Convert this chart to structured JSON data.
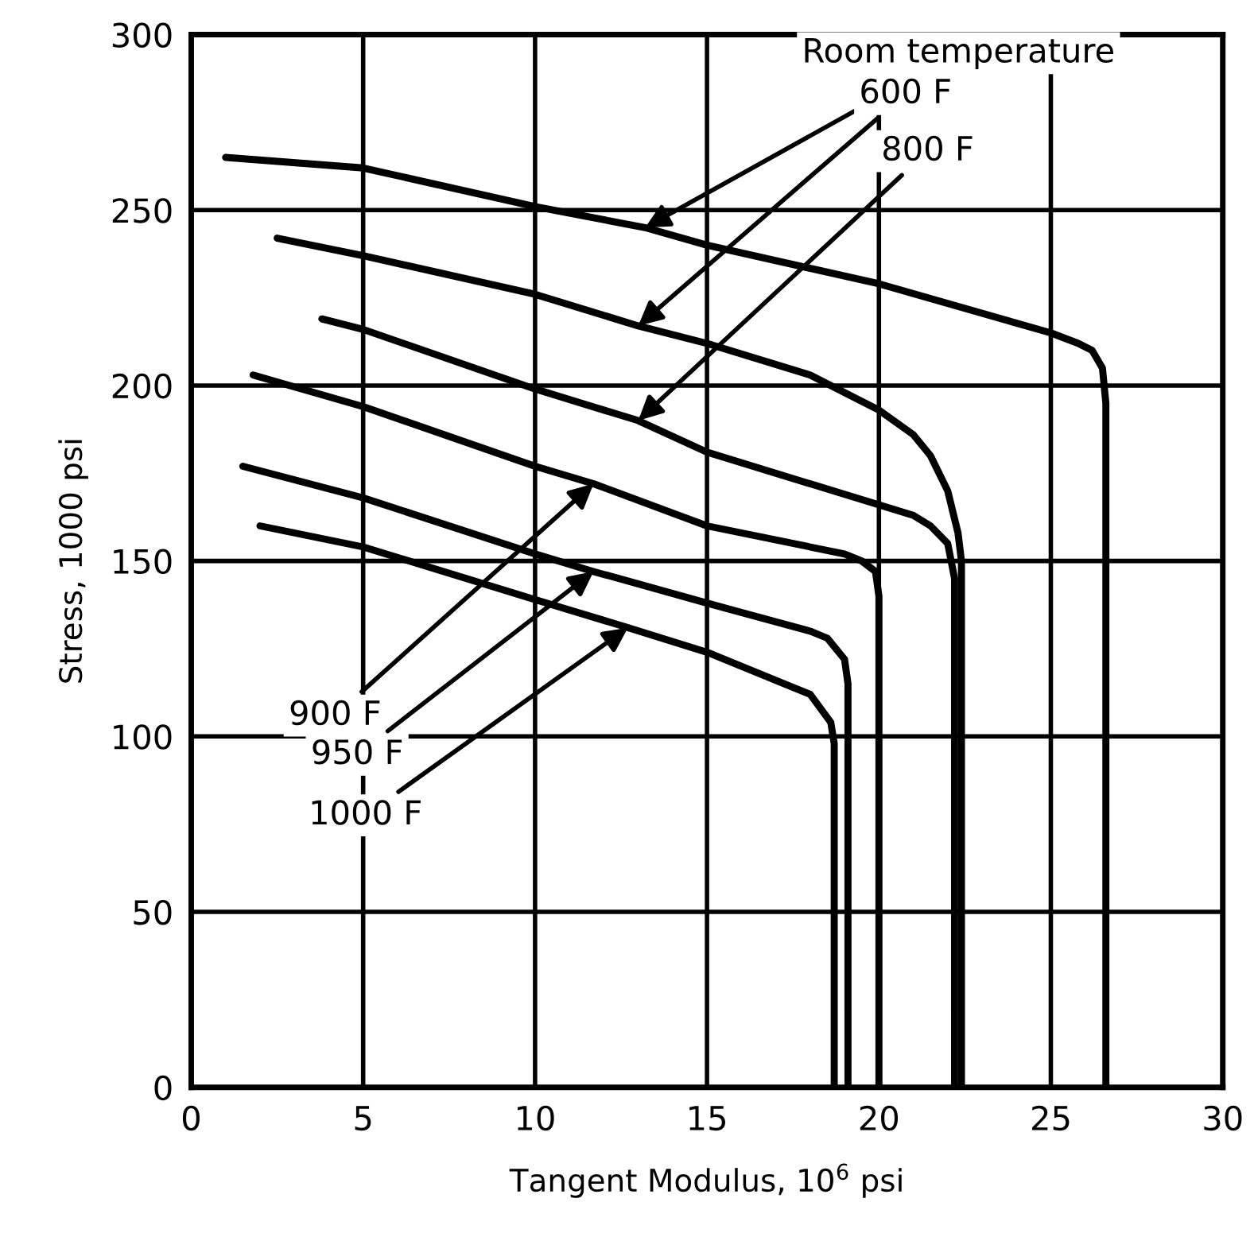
{
  "chart_data": {
    "type": "line",
    "xlabel": "Tangent Modulus, 10$^{6}$ psi",
    "ylabel": "Stress, 1000 psi",
    "xlim": [
      0,
      30
    ],
    "ylim": [
      0,
      300
    ],
    "xticks": [
      0,
      5,
      10,
      15,
      20,
      25,
      30
    ],
    "yticks": [
      0,
      50,
      100,
      150,
      200,
      250,
      300
    ],
    "grid": true,
    "marker": "none",
    "line_style": "solid",
    "series": [
      {
        "color": "#000000",
        "x": [
          1,
          5,
          10,
          13.2,
          15,
          20,
          25,
          25.8,
          26.2,
          26.5,
          26.6,
          26.6
        ],
        "values": [
          265,
          262,
          251,
          245,
          240,
          229,
          215,
          212,
          210,
          205,
          195,
          0
        ]
      },
      {
        "color": "#000000",
        "x": [
          2.5,
          5,
          10,
          13,
          15,
          18,
          20,
          21,
          21.5,
          22,
          22.3,
          22.4,
          22.4
        ],
        "values": [
          242,
          237,
          226,
          217,
          212,
          203,
          193,
          186,
          180,
          170,
          158,
          150,
          0
        ]
      },
      {
        "color": "#000000",
        "x": [
          3.8,
          5,
          10,
          13,
          15,
          20,
          21,
          21.5,
          22,
          22.2,
          22.2
        ],
        "values": [
          219,
          216,
          199,
          190,
          181,
          166,
          163,
          160,
          155,
          145,
          0
        ]
      },
      {
        "color": "#000000",
        "x": [
          1.8,
          5,
          10,
          11.7,
          15,
          19,
          19.5,
          19.9,
          20,
          20
        ],
        "values": [
          203,
          194,
          177,
          172,
          160,
          152,
          150,
          147,
          140,
          0
        ]
      },
      {
        "color": "#000000",
        "x": [
          1.5,
          5,
          10,
          11.7,
          15,
          18,
          18.5,
          19,
          19.1,
          19.1
        ],
        "values": [
          177,
          168,
          152,
          147,
          138,
          130,
          128,
          122,
          115,
          0
        ]
      },
      {
        "color": "#000000",
        "x": [
          2,
          5,
          10,
          12.7,
          15,
          17.5,
          18,
          18.6,
          18.7,
          18.7
        ],
        "values": [
          160,
          154,
          139,
          131,
          124,
          114,
          112,
          104,
          98,
          0
        ]
      }
    ],
    "annotations": [
      {
        "text": "Room temperature",
        "x": 13.2,
        "y": 245
      },
      {
        "text": "600 F",
        "x": 13,
        "y": 217
      },
      {
        "text": "800 F",
        "x": 13,
        "y": 190
      },
      {
        "text": "900 F",
        "x": 11.7,
        "y": 172
      },
      {
        "text": "950 F",
        "x": 11.7,
        "y": 147
      },
      {
        "text": "1000 F",
        "x": 12.7,
        "y": 131
      }
    ]
  }
}
